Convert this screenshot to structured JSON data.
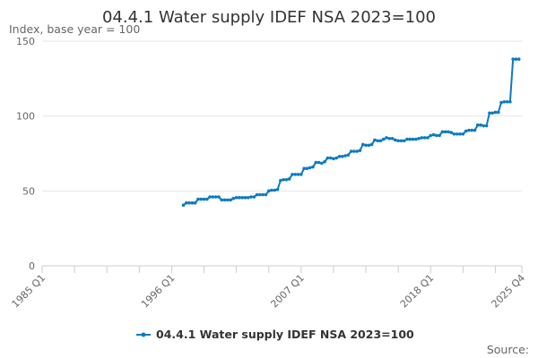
{
  "chart_data": {
    "type": "line",
    "title": "04.4.1 Water supply IDEF NSA 2023=100",
    "subtitle": "Index, base year = 100",
    "source_label": "Source:",
    "ylim": [
      0,
      150
    ],
    "yticks": [
      0,
      50,
      100,
      150
    ],
    "xlim": [
      1985.0,
      2025.75
    ],
    "xtick_values": [
      1985.0,
      1996.0,
      2007.0,
      2018.0,
      2025.75
    ],
    "xtick_labels": [
      "1985 Q1",
      "1996 Q1",
      "2007 Q1",
      "2018 Q1",
      "2025 Q4"
    ],
    "minor_xticks": [
      1985.0,
      1987.75,
      1990.5,
      1993.25,
      1996.0,
      1998.75,
      2001.5,
      2004.25,
      2007.0,
      2009.75,
      2012.5,
      2015.25,
      2018.0,
      2020.75,
      2023.5,
      2025.75
    ],
    "series": [
      {
        "name": "04.4.1 Water supply IDEF NSA 2023=100",
        "color": "#0e7bbf",
        "x_start": 1997.0,
        "x_step": 0.25,
        "values": [
          40.5,
          42.0,
          42.0,
          42.0,
          42.0,
          44.5,
          44.5,
          44.5,
          44.5,
          46.0,
          46.0,
          46.0,
          46.0,
          44.0,
          44.0,
          44.0,
          44.0,
          45.0,
          45.5,
          45.5,
          45.5,
          45.5,
          45.5,
          46.0,
          46.0,
          47.5,
          47.5,
          47.5,
          47.5,
          50.0,
          50.5,
          50.5,
          51.0,
          57.0,
          57.5,
          57.5,
          58.0,
          61.0,
          61.0,
          61.0,
          61.0,
          65.0,
          65.0,
          65.5,
          66.0,
          69.0,
          69.0,
          68.5,
          69.5,
          72.0,
          72.0,
          71.5,
          72.0,
          73.0,
          73.0,
          73.5,
          74.0,
          76.5,
          76.5,
          76.5,
          77.0,
          81.0,
          80.5,
          80.5,
          81.0,
          84.0,
          83.5,
          83.5,
          84.5,
          85.5,
          85.0,
          85.0,
          84.0,
          83.5,
          83.5,
          83.5,
          84.5,
          84.5,
          84.5,
          84.5,
          85.0,
          85.5,
          85.5,
          85.5,
          87.0,
          87.5,
          87.0,
          87.0,
          89.5,
          89.5,
          89.5,
          89.0,
          88.0,
          88.0,
          88.0,
          88.0,
          90.0,
          90.5,
          90.5,
          90.5,
          94.0,
          94.0,
          93.5,
          93.5,
          102.0,
          102.0,
          102.5,
          102.5,
          109.0,
          109.5,
          109.5,
          109.5,
          138.0,
          138.0,
          138.0
        ]
      }
    ]
  }
}
